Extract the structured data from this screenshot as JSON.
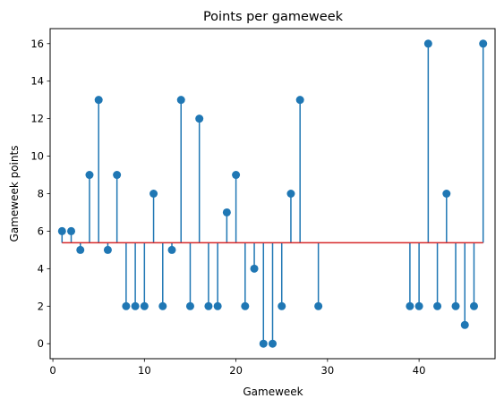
{
  "chart_data": {
    "type": "stem",
    "title": "Points per gameweek",
    "xlabel": "Gameweek",
    "ylabel": "Gameweek points",
    "xlim": [
      -0.3,
      48.3
    ],
    "ylim": [
      -0.8,
      16.8
    ],
    "xticks": [
      0,
      10,
      20,
      30,
      40
    ],
    "yticks": [
      0,
      2,
      4,
      6,
      8,
      10,
      12,
      14,
      16
    ],
    "baseline": 5.38,
    "grid": false,
    "colors": {
      "stem": "#1f77b4",
      "baseline": "#d62728"
    },
    "x": [
      1,
      2,
      3,
      4,
      5,
      6,
      7,
      8,
      9,
      10,
      11,
      12,
      13,
      14,
      15,
      16,
      17,
      18,
      19,
      20,
      21,
      22,
      23,
      24,
      25,
      26,
      27,
      29,
      39,
      40,
      41,
      42,
      43,
      44,
      45,
      46,
      47
    ],
    "values": [
      6,
      6,
      5,
      9,
      13,
      5,
      9,
      2,
      2,
      2,
      8,
      2,
      5,
      13,
      2,
      12,
      2,
      2,
      7,
      9,
      2,
      4,
      0,
      0,
      2,
      8,
      13,
      2,
      2,
      2,
      16,
      2,
      8,
      2,
      1,
      2,
      16
    ]
  }
}
